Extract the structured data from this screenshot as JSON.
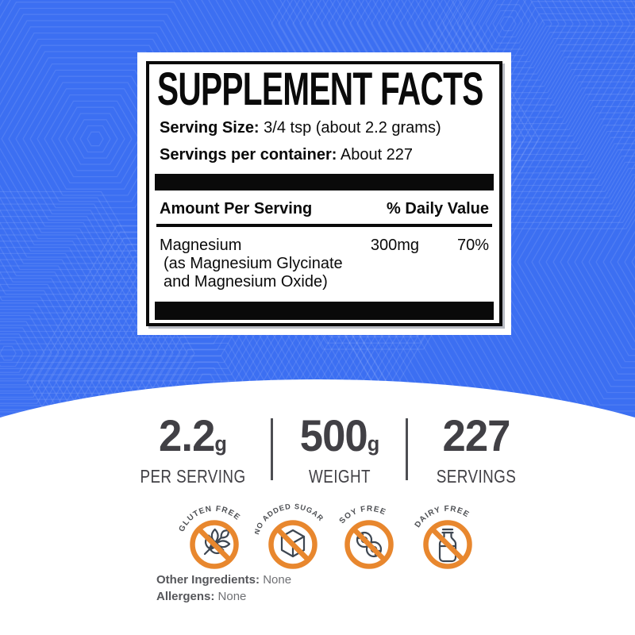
{
  "colors": {
    "background_blue": "#3c6ff2",
    "pattern_line": "#5d85f5",
    "accent_orange": "#e8872e",
    "icon_gray": "#3d4651",
    "text_dark": "#414045"
  },
  "facts_panel": {
    "title": "SUPPLEMENT FACTS",
    "serving_size_label": "Serving Size:",
    "serving_size_value": "3/4 tsp (about 2.2 grams)",
    "servings_label": "Servings per container:",
    "servings_value": "About 227",
    "table": {
      "header_left": "Amount Per Serving",
      "header_right": "% Daily Value",
      "row": {
        "name_line1": "Magnesium",
        "name_line2": "(as Magnesium Glycinate",
        "name_line3": "and Magnesium Oxide)",
        "amount": "300mg",
        "daily_value": "70%"
      }
    }
  },
  "stats": {
    "items": [
      {
        "value": "2.2",
        "unit": "g",
        "label": "PER SERVING"
      },
      {
        "value": "500",
        "unit": "g",
        "label": "WEIGHT"
      },
      {
        "value": "227",
        "unit": "",
        "label": "SERVINGS"
      }
    ]
  },
  "badges": {
    "items": [
      {
        "label": "GLUTEN FREE",
        "icon": "wheat-icon"
      },
      {
        "label": "NO ADDED SUGAR",
        "icon": "sugar-cube-icon"
      },
      {
        "label": "SOY FREE",
        "icon": "soybean-icon"
      },
      {
        "label": "DAIRY FREE",
        "icon": "milk-bottle-icon"
      }
    ]
  },
  "footnotes": {
    "items": [
      {
        "label": "Other Ingredients:",
        "value": "None"
      },
      {
        "label": "Allergens:",
        "value": "None"
      }
    ]
  }
}
